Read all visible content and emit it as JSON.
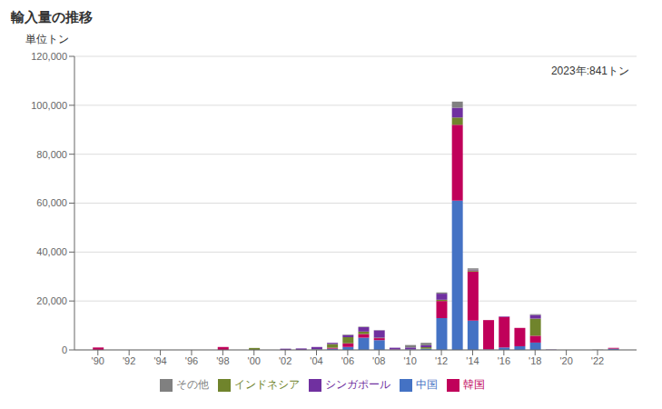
{
  "chart_data": {
    "type": "bar",
    "stacked": true,
    "title": "輸入量の推移",
    "ylabel": "単位トン",
    "annotation": "2023年:841トン",
    "x": [
      1990,
      1991,
      1992,
      1993,
      1994,
      1995,
      1996,
      1997,
      1998,
      1999,
      2000,
      2001,
      2002,
      2003,
      2004,
      2005,
      2006,
      2007,
      2008,
      2009,
      2010,
      2011,
      2012,
      2013,
      2014,
      2015,
      2016,
      2017,
      2018,
      2019,
      2020,
      2021,
      2022,
      2023
    ],
    "xlim": [
      1988.5,
      2024.5
    ],
    "xticks": [
      {
        "value": 1990,
        "label": "'90"
      },
      {
        "value": 1992,
        "label": "'92"
      },
      {
        "value": 1994,
        "label": "'94"
      },
      {
        "value": 1996,
        "label": "'96"
      },
      {
        "value": 1998,
        "label": "'98"
      },
      {
        "value": 2000,
        "label": "'00"
      },
      {
        "value": 2002,
        "label": "'02"
      },
      {
        "value": 2004,
        "label": "'04"
      },
      {
        "value": 2006,
        "label": "'06"
      },
      {
        "value": 2008,
        "label": "'08"
      },
      {
        "value": 2010,
        "label": "'10"
      },
      {
        "value": 2012,
        "label": "'12"
      },
      {
        "value": 2014,
        "label": "'14"
      },
      {
        "value": 2016,
        "label": "'16"
      },
      {
        "value": 2018,
        "label": "'18"
      },
      {
        "value": 2020,
        "label": "'20"
      },
      {
        "value": 2022,
        "label": "'22"
      }
    ],
    "ylim": [
      0,
      120000
    ],
    "yticks": [
      0,
      {
        "value": 20000,
        "label": "20,000"
      },
      {
        "value": 40000,
        "label": "40,000"
      },
      {
        "value": 60000,
        "label": "60,000"
      },
      {
        "value": 80000,
        "label": "80,000"
      },
      {
        "value": 100000,
        "label": "100,000"
      },
      {
        "value": 120000,
        "label": "120,000"
      }
    ],
    "grid": true,
    "legend": "bottom",
    "series": [
      {
        "name": "中国",
        "color": "#4472C4",
        "values": [
          0,
          0,
          0,
          0,
          0,
          0,
          0,
          0,
          0,
          0,
          0,
          0,
          0,
          0,
          200,
          500,
          1200,
          5000,
          4000,
          100,
          200,
          500,
          13000,
          61000,
          12000,
          200,
          1000,
          1500,
          3000,
          100,
          0,
          0,
          0,
          500
        ]
      },
      {
        "name": "韓国",
        "color": "#C0005A",
        "values": [
          1000,
          0,
          0,
          0,
          0,
          0,
          0,
          0,
          1200,
          0,
          0,
          0,
          0,
          0,
          0,
          400,
          1500,
          1500,
          800,
          100,
          0,
          0,
          7000,
          31000,
          20000,
          12000,
          12500,
          7500,
          2800,
          50,
          0,
          0,
          0,
          341
        ]
      },
      {
        "name": "インドネシア",
        "color": "#70842C",
        "values": [
          0,
          0,
          0,
          0,
          0,
          0,
          0,
          0,
          0,
          0,
          800,
          0,
          0,
          0,
          100,
          1500,
          2500,
          1000,
          200,
          0,
          0,
          600,
          500,
          3000,
          500,
          0,
          0,
          0,
          7000,
          0,
          0,
          0,
          0,
          0
        ]
      },
      {
        "name": "シンガポール",
        "color": "#7030A0",
        "values": [
          0,
          0,
          0,
          0,
          0,
          0,
          0,
          0,
          0,
          0,
          0,
          0,
          500,
          600,
          900,
          500,
          900,
          1800,
          3000,
          700,
          800,
          800,
          2500,
          4000,
          300,
          0,
          200,
          0,
          1500,
          0,
          0,
          0,
          0,
          0
        ]
      },
      {
        "name": "その他",
        "color": "#808080",
        "values": [
          0,
          0,
          0,
          0,
          0,
          0,
          0,
          0,
          0,
          0,
          0,
          0,
          0,
          0,
          0,
          0,
          200,
          200,
          100,
          0,
          1000,
          1000,
          500,
          2500,
          500,
          0,
          0,
          0,
          300,
          0,
          0,
          0,
          100,
          0
        ]
      }
    ]
  }
}
